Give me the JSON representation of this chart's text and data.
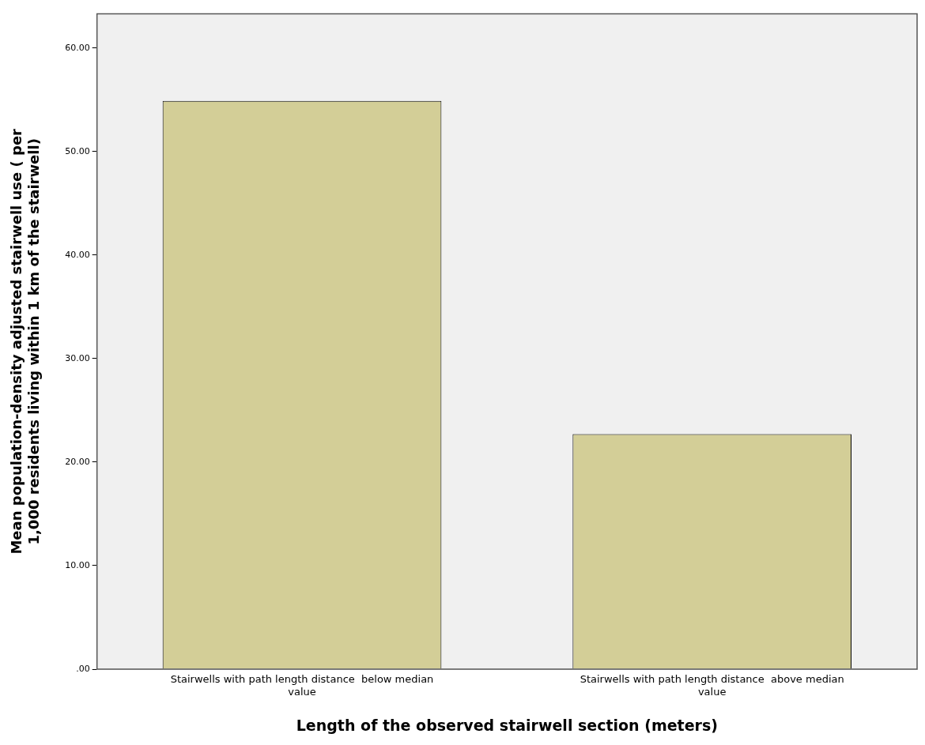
{
  "chart_data": {
    "type": "bar",
    "xlabel": "Length of the observed stairwell section (meters)",
    "ylabel": "Mean population-density adjusted stairwell use ( per 1,000 residents living within 1 km of the stairwell)",
    "categories": [
      "Stairwells with path length distance  below median value",
      "Stairwells with path length distance  above median value"
    ],
    "values": [
      54.9,
      22.7
    ],
    "color": "#d3ce97",
    "ylim": [
      0,
      63.3
    ],
    "yticks": [
      {
        "value": 0,
        "label": ".00"
      },
      {
        "value": 10,
        "label": "10.00"
      },
      {
        "value": 20,
        "label": "20.00"
      },
      {
        "value": 30,
        "label": "30.00"
      },
      {
        "value": 40,
        "label": "40.00"
      },
      {
        "value": 50,
        "label": "50.00"
      },
      {
        "value": 60,
        "label": "60.00"
      }
    ],
    "grid": false
  }
}
